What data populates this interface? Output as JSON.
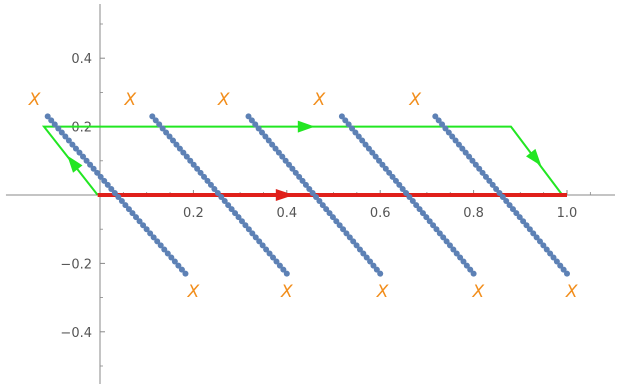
{
  "chart_data": {
    "type": "scatter",
    "xlim": [
      -0.18,
      1.12
    ],
    "ylim": [
      -0.55,
      0.55
    ],
    "grid": false,
    "legend": "none",
    "x_ticks": [
      0.2,
      0.4,
      0.6,
      0.8,
      1.0
    ],
    "x_tick_labels": [
      "0.2",
      "0.4",
      "0.6",
      "0.8",
      "1.0"
    ],
    "y_ticks": [
      -0.4,
      -0.2,
      0.2,
      0.4
    ],
    "y_tick_labels": [
      "−0.4",
      "−0.2",
      "0.2",
      "0.4"
    ],
    "colors": {
      "points": "#5d81b5",
      "marks": "#f28e1c",
      "red_path": "#e0201a",
      "green_path": "#22e622",
      "axes": "#888888"
    },
    "point_series": [
      {
        "x_start": -0.112,
        "x_end": 0.183,
        "y_start": 0.23,
        "y_end": -0.23,
        "n": 40
      },
      {
        "x_start": 0.112,
        "x_end": 0.4,
        "y_start": 0.23,
        "y_end": -0.23,
        "n": 40
      },
      {
        "x_start": 0.318,
        "x_end": 0.6,
        "y_start": 0.23,
        "y_end": -0.23,
        "n": 40
      },
      {
        "x_start": 0.518,
        "x_end": 0.8,
        "y_start": 0.23,
        "y_end": -0.23,
        "n": 40
      },
      {
        "x_start": 0.718,
        "x_end": 1.0,
        "y_start": 0.23,
        "y_end": -0.23,
        "n": 40
      }
    ],
    "x_marks": [
      {
        "x": -0.14,
        "y": 0.28,
        "label": "X"
      },
      {
        "x": 0.065,
        "y": 0.28,
        "label": "X"
      },
      {
        "x": 0.265,
        "y": 0.28,
        "label": "X"
      },
      {
        "x": 0.47,
        "y": 0.28,
        "label": "X"
      },
      {
        "x": 0.675,
        "y": 0.28,
        "label": "X"
      },
      {
        "x": 0.2,
        "y": -0.28,
        "label": "X"
      },
      {
        "x": 0.4,
        "y": -0.28,
        "label": "X"
      },
      {
        "x": 0.605,
        "y": -0.28,
        "label": "X"
      },
      {
        "x": 0.81,
        "y": -0.28,
        "label": "X"
      },
      {
        "x": 1.01,
        "y": -0.28,
        "label": "X"
      }
    ],
    "red_path": {
      "points": [
        [
          -0.005,
          0.0
        ],
        [
          1.0,
          0.0
        ]
      ],
      "arrow_at": [
        0.415,
        0.0
      ]
    },
    "green_path": {
      "points": [
        [
          -0.005,
          0.0
        ],
        [
          -0.12,
          0.2
        ],
        [
          0.88,
          0.2
        ],
        [
          0.99,
          0.0
        ]
      ],
      "arrows": [
        {
          "from": [
            -0.03,
            0.045
          ],
          "to": [
            -0.07,
            0.115
          ]
        },
        {
          "from": [
            0.4,
            0.2
          ],
          "to": [
            0.46,
            0.2
          ]
        },
        {
          "from": [
            0.91,
            0.145
          ],
          "to": [
            0.945,
            0.085
          ]
        }
      ]
    }
  }
}
